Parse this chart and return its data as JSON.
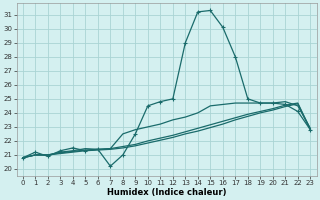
{
  "xlabel": "Humidex (Indice chaleur)",
  "xlim": [
    -0.5,
    23.5
  ],
  "ylim": [
    19.5,
    31.8
  ],
  "yticks": [
    20,
    21,
    22,
    23,
    24,
    25,
    26,
    27,
    28,
    29,
    30,
    31
  ],
  "xticks": [
    0,
    1,
    2,
    3,
    4,
    5,
    6,
    7,
    8,
    9,
    10,
    11,
    12,
    13,
    14,
    15,
    16,
    17,
    18,
    19,
    20,
    21,
    22,
    23
  ],
  "bg_color": "#d4f0f0",
  "grid_color": "#aad4d4",
  "line_color": "#1a6b6b",
  "series_main": [
    20.8,
    21.2,
    20.9,
    21.3,
    21.5,
    21.3,
    21.4,
    20.2,
    21.0,
    22.5,
    24.5,
    24.8,
    25.0,
    29.0,
    31.2,
    31.3,
    30.1,
    28.0,
    25.0,
    24.7,
    24.7,
    24.6,
    24.1,
    22.8
  ],
  "series_trend1": [
    20.8,
    21.0,
    21.0,
    21.2,
    21.3,
    21.45,
    21.4,
    21.45,
    22.5,
    22.8,
    23.0,
    23.2,
    23.5,
    23.7,
    24.0,
    24.5,
    24.6,
    24.7,
    24.7,
    24.7,
    24.7,
    24.8,
    24.5,
    22.9
  ],
  "series_trend2": [
    20.8,
    21.0,
    21.0,
    21.15,
    21.25,
    21.35,
    21.4,
    21.45,
    21.6,
    21.75,
    22.0,
    22.2,
    22.4,
    22.65,
    22.9,
    23.15,
    23.4,
    23.65,
    23.9,
    24.1,
    24.3,
    24.55,
    24.7,
    22.85
  ],
  "series_trend3": [
    20.8,
    21.0,
    21.0,
    21.1,
    21.2,
    21.3,
    21.35,
    21.4,
    21.5,
    21.65,
    21.85,
    22.05,
    22.25,
    22.5,
    22.7,
    22.95,
    23.2,
    23.5,
    23.75,
    24.0,
    24.2,
    24.45,
    24.65,
    22.8
  ]
}
